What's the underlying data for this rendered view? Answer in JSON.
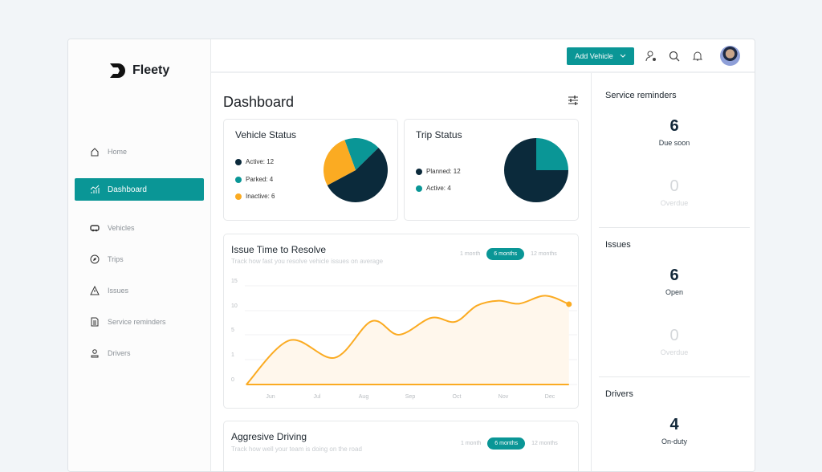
{
  "app": {
    "name": "Fleety"
  },
  "sidebar": {
    "items": [
      {
        "label": "Home",
        "icon": "home-icon"
      },
      {
        "label": "Dashboard",
        "icon": "trend-chart-icon",
        "active": true
      },
      {
        "label": "Vehicles",
        "icon": "car-icon"
      },
      {
        "label": "Trips",
        "icon": "compass-icon"
      },
      {
        "label": "Issues",
        "icon": "warning-icon"
      },
      {
        "label": "Service reminders",
        "icon": "document-icon"
      },
      {
        "label": "Drivers",
        "icon": "user-icon"
      }
    ]
  },
  "header": {
    "add_vehicle": "Add Vehicle"
  },
  "main": {
    "title": "Dashboard"
  },
  "colors": {
    "accent": "#0a9696",
    "dark": "#0b2a3b",
    "orange": "#fbab22"
  },
  "vehicle_status": {
    "title": "Vehicle Status",
    "items": [
      {
        "label": "Active: 12",
        "value": 12,
        "color": "#0b2a3b"
      },
      {
        "label": "Parked: 4",
        "value": 4,
        "color": "#0a9696"
      },
      {
        "label": "Inactive: 6",
        "value": 6,
        "color": "#fbab22"
      }
    ]
  },
  "trip_status": {
    "title": "Trip Status",
    "items": [
      {
        "label": "Planned: 12",
        "value": 12,
        "color": "#0b2a3b"
      },
      {
        "label": "Active: 4",
        "value": 4,
        "color": "#0a9696"
      }
    ]
  },
  "issue_chart": {
    "title": "Issue Time to Resolve",
    "subtitle": "Track how fast you resolve vehicle issues on average",
    "ranges": [
      "1 month",
      "6 months",
      "12 months"
    ],
    "selected": "6 months"
  },
  "aggressive": {
    "title": "Aggresive Driving",
    "subtitle": "Track how well your team is doing on the road",
    "ranges": [
      "1 month",
      "6 months",
      "12 months"
    ],
    "selected": "6 months"
  },
  "chart_data": {
    "type": "area",
    "yticks": [
      "15",
      "10",
      "5",
      "1",
      "0"
    ],
    "xticks": [
      "Jun",
      "Jul",
      "Aug",
      "Sep",
      "Oct",
      "Nov",
      "Dec"
    ],
    "points": [
      [
        -0.52,
        0
      ],
      [
        0.41,
        4.1
      ],
      [
        1.38,
        1.3
      ],
      [
        2.17,
        7.8
      ],
      [
        2.76,
        5
      ],
      [
        3.45,
        8.5
      ],
      [
        3.97,
        7.7
      ],
      [
        4.43,
        11
      ],
      [
        4.9,
        12
      ],
      [
        5.34,
        11.4
      ],
      [
        5.9,
        13
      ],
      [
        6.41,
        11.3
      ]
    ]
  },
  "right": {
    "service": {
      "title": "Service reminders",
      "due": "6",
      "due_label": "Due soon",
      "overdue": "0",
      "overdue_label": "Overdue"
    },
    "issues": {
      "title": "Issues",
      "open": "6",
      "open_label": "Open",
      "overdue": "0",
      "overdue_label": "Overdue"
    },
    "drivers": {
      "title": "Drivers",
      "onduty": "4",
      "onduty_label": "On-duty"
    }
  }
}
